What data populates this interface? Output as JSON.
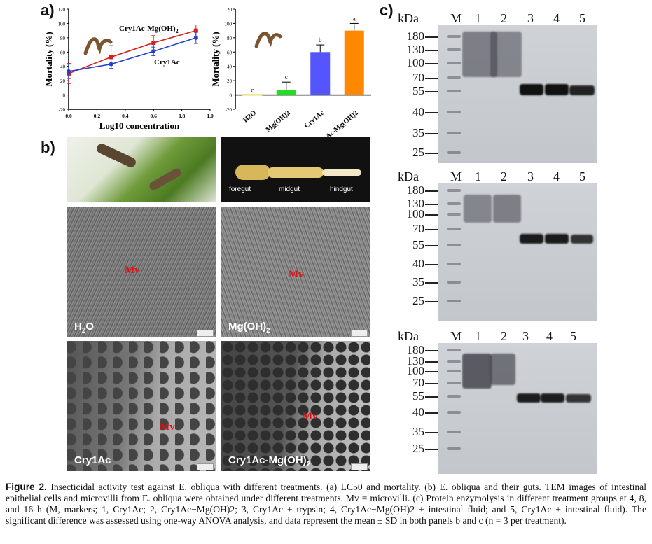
{
  "panel_labels": {
    "a": "a)",
    "b": "b)",
    "c": "c)"
  },
  "chart_data": [
    {
      "type": "line",
      "xlabel": "Log10 concentration",
      "ylabel": "Mortality (%)",
      "xlim": [
        0.0,
        1.0
      ],
      "ylim": [
        -20,
        120
      ],
      "x_ticks": [
        "0.0",
        "0.2",
        "0.4",
        "0.6",
        "0.8",
        "1.0"
      ],
      "y_ticks": [
        "-20",
        "0",
        "20",
        "40",
        "60",
        "80",
        "100",
        "120"
      ],
      "series": [
        {
          "name": "Cry1Ac-Mg(OH)2",
          "color": "#d62020",
          "x": [
            0.0,
            0.3,
            0.6,
            0.9
          ],
          "y": [
            30,
            53,
            73,
            90
          ],
          "err": [
            14,
            16,
            10,
            8
          ]
        },
        {
          "name": "Cry1Ac",
          "color": "#2040d0",
          "x": [
            0.0,
            0.3,
            0.6,
            0.9
          ],
          "y": [
            33,
            43,
            61,
            80
          ],
          "err": [
            10,
            6,
            6,
            8
          ]
        }
      ]
    },
    {
      "type": "bar",
      "ylabel": "Mortality (%)",
      "ylim": [
        -20,
        120
      ],
      "y_ticks": [
        "-20",
        "0",
        "20",
        "40",
        "60",
        "80",
        "100",
        "120"
      ],
      "categories": [
        "H2O",
        "Mg(OH)2",
        "Cry1Ac",
        "Cry1Ac-Mg(OH)2"
      ],
      "values": [
        0,
        7,
        60,
        90
      ],
      "errors": [
        0,
        11,
        10,
        10
      ],
      "letters": [
        "c",
        "c",
        "b",
        "a"
      ],
      "colors": [
        "#f5f500",
        "#22dd22",
        "#5555ff",
        "#ff8800"
      ]
    }
  ],
  "panel_b": {
    "gut_labels": {
      "foregut": "foregut",
      "midgut": "midgut",
      "hindgut": "hindgut"
    },
    "mv_label": "Mv",
    "tem_labels": [
      "H2O",
      "Mg(OH)2",
      "Cry1Ac",
      "Cry1Ac-Mg(OH)2"
    ]
  },
  "panel_c": {
    "kda": "kDa",
    "lanes": [
      "M",
      "1",
      "2",
      "3",
      "4",
      "5"
    ],
    "markers": [
      "180",
      "130",
      "100",
      "70",
      "55",
      "40",
      "35",
      "25"
    ]
  },
  "caption": {
    "label": "Figure 2.",
    "text": "Insecticidal activity test against E. obliqua with different treatments. (a) LC50 and mortality. (b) E. obliqua and their guts. TEM images of intestinal epithelial cells and microvilli from E. obliqua were obtained under different treatments. Mv = microvilli. (c) Protein enzymolysis in different treatment groups at 4, 8, and 16 h (M, markers; 1, Cry1Ac; 2, Cry1Ac−Mg(OH)2; 3, Cry1Ac + trypsin; 4, Cry1Ac−Mg(OH)2 + intestinal fluid; and 5, Cry1Ac + intestinal fluid). The significant difference was assessed using one-way ANOVA analysis, and data represent the mean ± SD in both panels b and c (n = 3 per treatment)."
  }
}
